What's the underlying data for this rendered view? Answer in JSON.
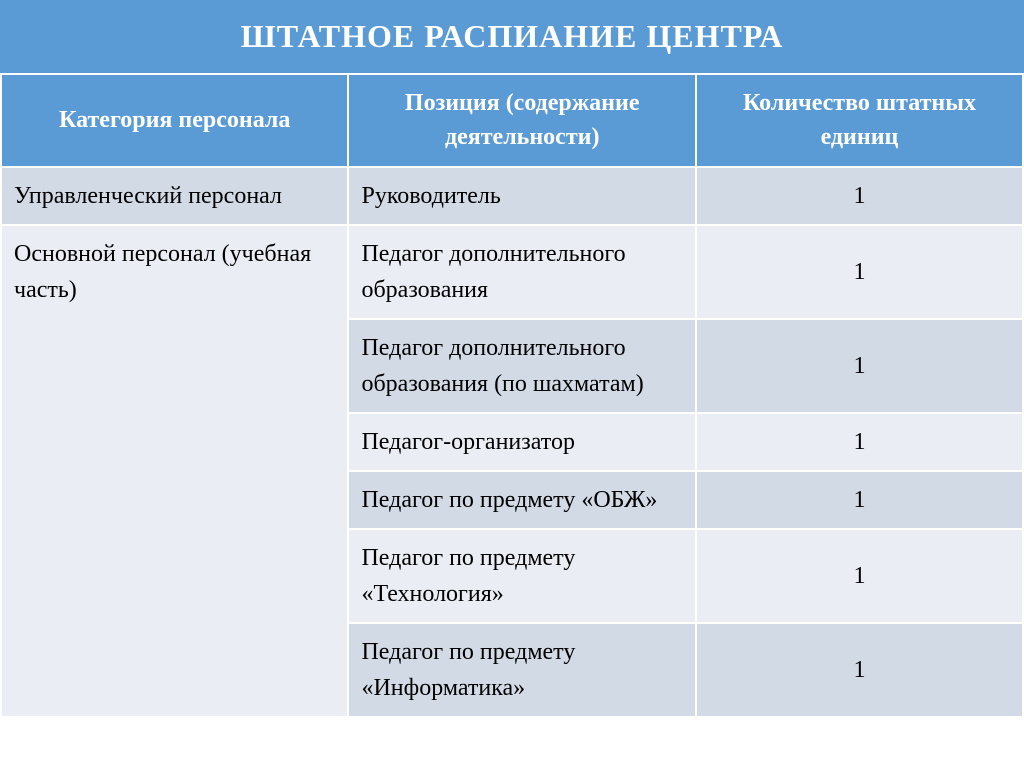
{
  "title": "ШТАТНОЕ РАСПИАНИЕ ЦЕНТРА",
  "headers": {
    "col1": "Категория персонала",
    "col2": "Позиция (содержание деятельности)",
    "col3": "Количество штатных единиц"
  },
  "rows": [
    {
      "category": "Управленческий персонал",
      "position": "Руководитель",
      "count": "1"
    },
    {
      "category": "Основной персонал (учебная часть)",
      "position": "Педагог дополнительного образования",
      "count": "1"
    },
    {
      "category": "",
      "position": "Педагог дополнительного образования (по шахматам)",
      "count": "1"
    },
    {
      "category": "",
      "position": "Педагог-организатор",
      "count": "1"
    },
    {
      "category": "",
      "position": "Педагог по предмету «ОБЖ»",
      "count": "1"
    },
    {
      "category": "",
      "position": "Педагог по предмету «Технология»",
      "count": "1"
    },
    {
      "category": "",
      "position": "Педагог по предмету «Информатика»",
      "count": "1"
    }
  ],
  "style": {
    "title_bg": "#5b9bd5",
    "title_color": "#ffffff",
    "title_fontsize": 32,
    "header_bg": "#5b9bd5",
    "header_color": "#ffffff",
    "header_fontsize": 24,
    "cell_fontsize": 24,
    "row_even_bg": "#d2dae6",
    "row_odd_bg": "#eaedf3",
    "border_color": "#ffffff",
    "text_color": "#000000",
    "col_widths_pct": [
      34,
      34,
      32
    ]
  }
}
